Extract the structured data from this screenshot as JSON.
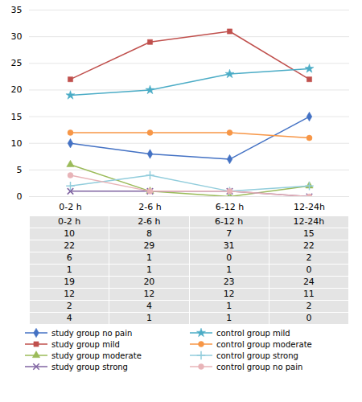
{
  "chart_data": {
    "type": "line",
    "categories": [
      "0-2 h",
      "2-6 h",
      "6-12 h",
      "12-24h"
    ],
    "series": [
      {
        "name": "study group no pain",
        "color": "#4472C4",
        "marker": "diamond",
        "values": [
          10,
          8,
          7,
          15
        ]
      },
      {
        "name": "study group mild",
        "color": "#C0504D",
        "marker": "square",
        "values": [
          22,
          29,
          31,
          22
        ]
      },
      {
        "name": "study group moderate",
        "color": "#9BBB59",
        "marker": "triangle",
        "values": [
          6,
          1,
          0,
          2
        ]
      },
      {
        "name": "study group strong",
        "color": "#8064A2",
        "marker": "times",
        "values": [
          1,
          1,
          1,
          0
        ]
      },
      {
        "name": "control group mild",
        "color": "#4BACC6",
        "marker": "star",
        "values": [
          19,
          20,
          23,
          24
        ]
      },
      {
        "name": "control group moderate",
        "color": "#F79646",
        "marker": "circle",
        "values": [
          12,
          12,
          12,
          11
        ]
      },
      {
        "name": "control group strong",
        "color": "#92CDDC",
        "marker": "plus",
        "values": [
          2,
          4,
          1,
          2
        ]
      },
      {
        "name": "control group no pain",
        "color": "#E8B4B8",
        "marker": "circle",
        "values": [
          4,
          1,
          1,
          0
        ]
      }
    ],
    "ylim": [
      0,
      35
    ],
    "yticks": [
      0,
      5,
      10,
      15,
      20,
      25,
      30,
      35
    ],
    "grid": true
  }
}
